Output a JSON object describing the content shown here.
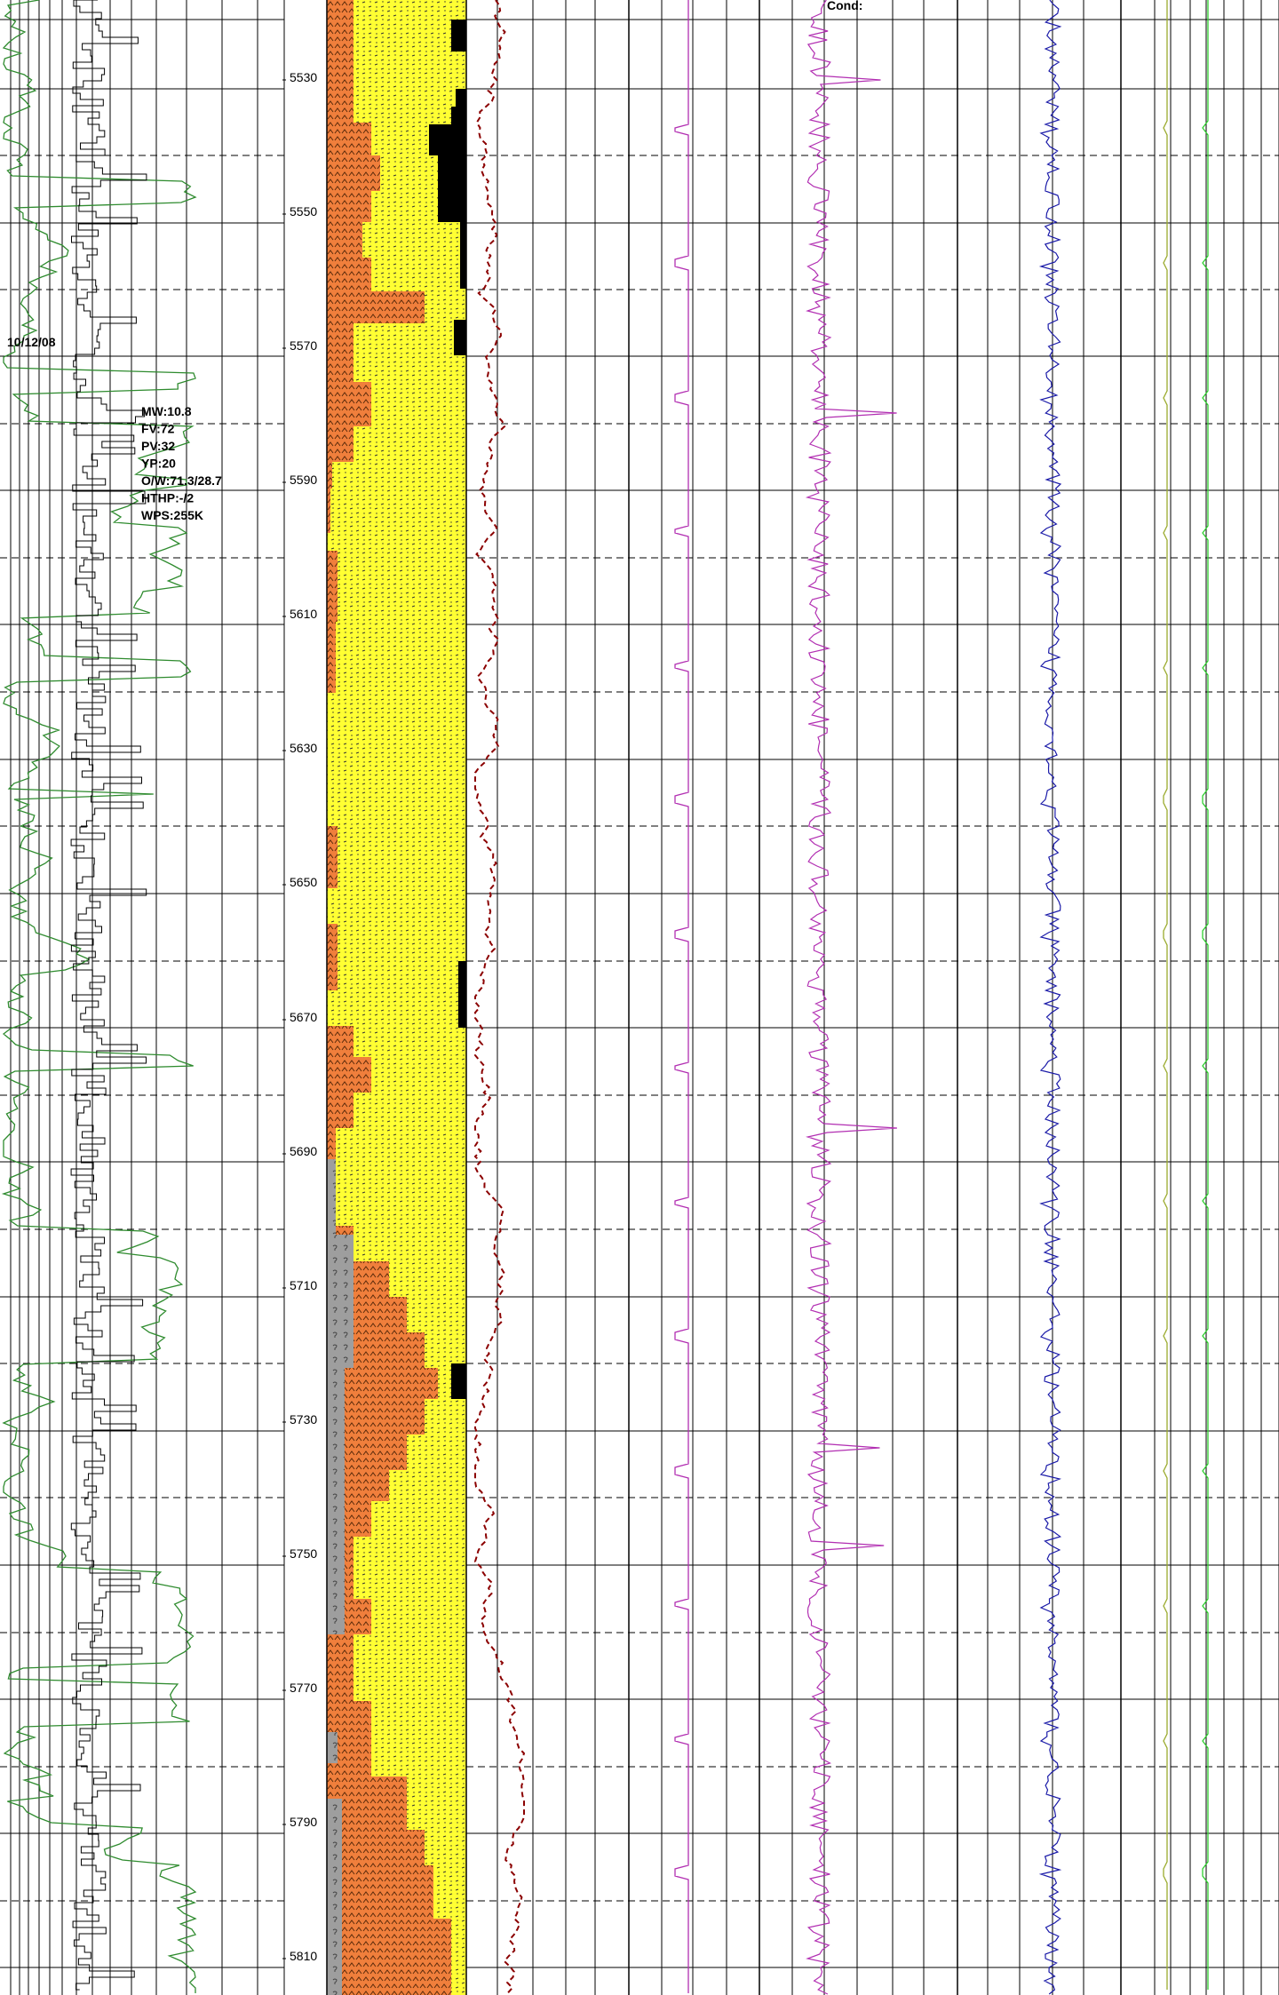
{
  "header": {
    "cond_label": "Cond:"
  },
  "depth_track": {
    "labels": [
      "5530",
      "5550",
      "5570",
      "5590",
      "5610",
      "5630",
      "5650",
      "5670",
      "5690",
      "5710",
      "5730",
      "5750",
      "5770",
      "5790",
      "5810"
    ]
  },
  "annotations": {
    "date": "10/12/08",
    "mud_props": [
      "MW:10.8",
      "FV:72",
      "PV:32",
      "YP:20",
      "O/W:71.3/28.7",
      "HTHP:-/2",
      "WPS:255K"
    ]
  },
  "colors": {
    "sand": "#ffff33",
    "shale": "#f07f3c",
    "siltstone": "#9e9e9e",
    "coal": "#000000",
    "gamma_ray": "#2e8b2e",
    "rop": "#000000",
    "gas_dashed": "#8b0000",
    "magenta_curve": "#b22fb2",
    "blue_curve": "#1a1aa8",
    "olive_curve": "#9aaa2c",
    "green_curve": "#2fd02f"
  },
  "icons": [
    "sand-pattern-fill",
    "shale-pattern-fill",
    "siltstone-pattern-fill"
  ]
}
